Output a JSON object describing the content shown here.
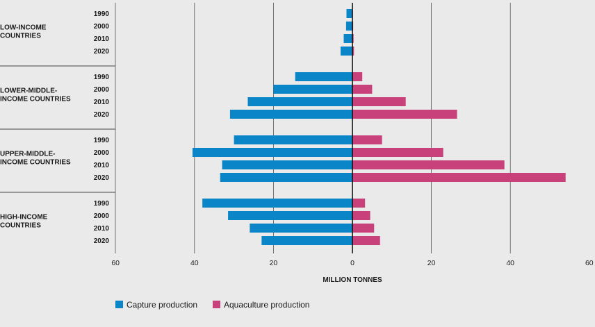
{
  "chart_data": {
    "type": "bar",
    "orientation": "horizontal-diverging",
    "xlabel": "MILLION TONNES",
    "xlim": [
      -60,
      60
    ],
    "x_ticks": [
      "60",
      "40",
      "20",
      "0",
      "20",
      "40",
      "60"
    ],
    "legend_position": "bottom-left",
    "groups": [
      {
        "name": "LOW-INCOME\nCOUNTRIES",
        "years": [
          "1990",
          "2000",
          "2010",
          "2020"
        ]
      },
      {
        "name": "LOWER-MIDDLE-\nINCOME COUNTRIES",
        "years": [
          "1990",
          "2000",
          "2010",
          "2020"
        ]
      },
      {
        "name": "UPPER-MIDDLE-\nINCOME COUNTRIES",
        "years": [
          "1990",
          "2000",
          "2010",
          "2020"
        ]
      },
      {
        "name": "HIGH-INCOME\nCOUNTRIES",
        "years": [
          "1990",
          "2000",
          "2010",
          "2020"
        ]
      }
    ],
    "series": [
      {
        "name": "Capture production",
        "color": "#0a86c8",
        "direction": "left",
        "values": [
          [
            1.5,
            1.6,
            2.2,
            3.0
          ],
          [
            14.5,
            20.0,
            26.5,
            31.0
          ],
          [
            30.0,
            40.5,
            33.0,
            33.5
          ],
          [
            38.0,
            31.5,
            26.0,
            23.0
          ]
        ]
      },
      {
        "name": "Aquaculture production",
        "color": "#c8417b",
        "direction": "right",
        "values": [
          [
            0.1,
            0.2,
            0.3,
            0.4
          ],
          [
            2.5,
            5.0,
            13.5,
            26.5
          ],
          [
            7.5,
            23.0,
            38.5,
            54.0
          ],
          [
            3.2,
            4.5,
            5.5,
            7.0
          ]
        ]
      }
    ]
  }
}
